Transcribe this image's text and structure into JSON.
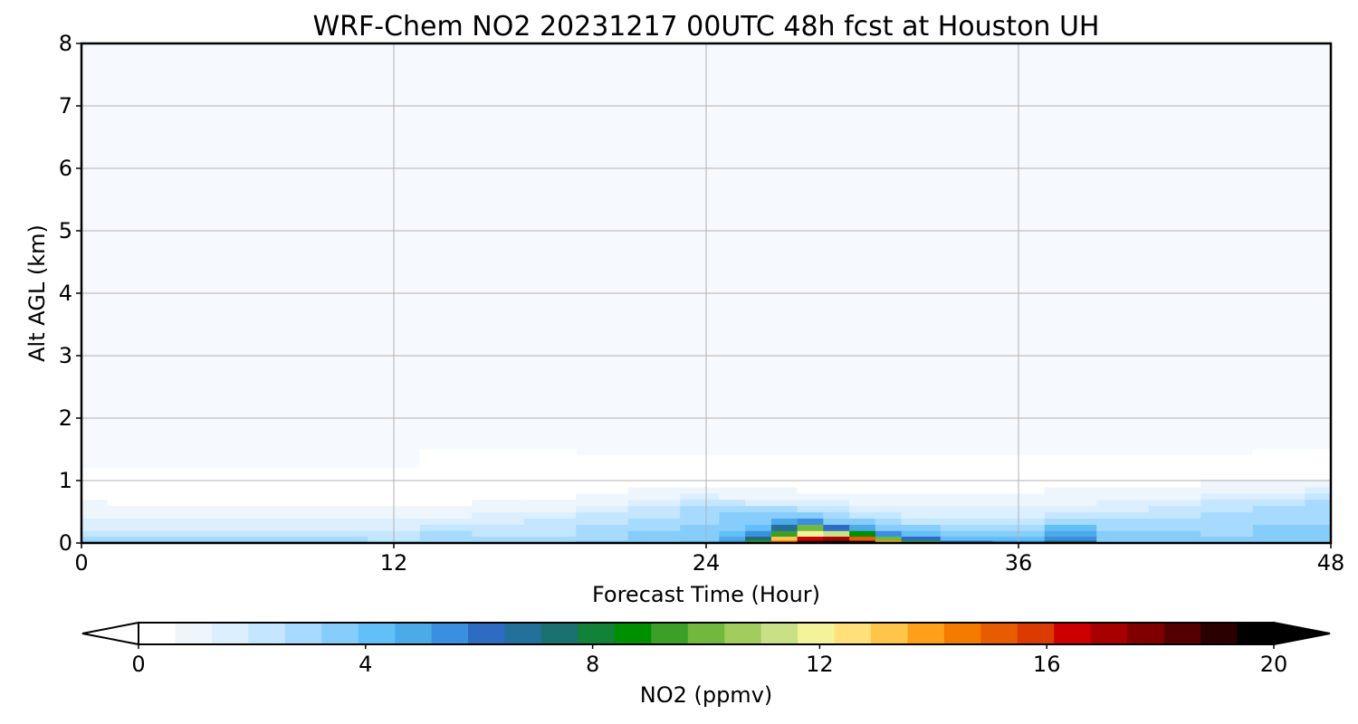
{
  "chart_data": {
    "type": "heatmap",
    "title": "WRF-Chem NO2  20231217 00UTC 48h fcst at Houston UH",
    "xlabel": "Forecast Time (Hour)",
    "ylabel": "Alt AGL (km)",
    "xlim": [
      0,
      48
    ],
    "ylim": [
      0,
      8
    ],
    "xticks": [
      0,
      12,
      24,
      36,
      48
    ],
    "yticks": [
      0,
      1,
      2,
      3,
      4,
      5,
      6,
      7,
      8
    ],
    "grid": true,
    "colorbar": {
      "label": "NO2  (ppmv)",
      "min": 0,
      "max": 20,
      "ticks": [
        0,
        4,
        8,
        12,
        16,
        20
      ],
      "extend": "both",
      "colors": [
        "#ffffff",
        "#eef6fc",
        "#dcefff",
        "#c4e6ff",
        "#a6dbff",
        "#86cdfb",
        "#62bff8",
        "#4caae8",
        "#3a8fe0",
        "#2e6bc2",
        "#23709a",
        "#1b7070",
        "#118238",
        "#008f00",
        "#3b9f28",
        "#73b83e",
        "#a2cc5e",
        "#c9e186",
        "#f3f39a",
        "#ffe07a",
        "#ffc44a",
        "#ff9f1a",
        "#f47a00",
        "#e85c00",
        "#db3a00",
        "#cc0000",
        "#a60000",
        "#800000",
        "#550000",
        "#2a0000",
        "#000000"
      ]
    },
    "x": [
      0,
      2,
      4,
      6,
      8,
      10,
      12,
      14,
      16,
      18,
      20,
      22,
      24,
      25,
      26,
      27,
      28,
      29,
      30,
      31,
      32,
      34,
      36,
      38,
      40,
      42,
      44,
      46,
      48
    ],
    "y": [
      0.02,
      0.07,
      0.15,
      0.25,
      0.35,
      0.45,
      0.55,
      0.65,
      0.75,
      0.85,
      0.95,
      1.1,
      1.3,
      1.5
    ],
    "z": [
      [
        3.0,
        3.5,
        3.5,
        3.5,
        3.5,
        3.0,
        2.5,
        2.8,
        2.5,
        2.5,
        3.0,
        3.5,
        4.0,
        5.0,
        9.0,
        15.0,
        19.0,
        20.0,
        19.0,
        14.0,
        9.0,
        6.0,
        5.0,
        7.5,
        3.5,
        3.0,
        3.0,
        3.0,
        3.0
      ],
      [
        2.5,
        2.8,
        2.8,
        2.8,
        2.8,
        2.5,
        2.2,
        2.6,
        2.4,
        2.4,
        2.8,
        3.2,
        3.5,
        4.5,
        7.5,
        13.0,
        16.5,
        17.0,
        15.0,
        10.0,
        6.0,
        4.0,
        4.0,
        5.5,
        3.2,
        3.0,
        3.0,
        3.0,
        3.0
      ],
      [
        2.0,
        2.0,
        2.1,
        2.1,
        2.0,
        1.9,
        1.8,
        2.4,
        2.2,
        2.3,
        2.6,
        3.0,
        3.2,
        4.0,
        5.5,
        9.5,
        12.0,
        11.0,
        8.5,
        5.5,
        4.0,
        3.0,
        3.3,
        4.5,
        3.0,
        3.0,
        2.9,
        3.0,
        3.0
      ],
      [
        1.5,
        1.5,
        1.5,
        1.5,
        1.5,
        1.4,
        1.4,
        2.0,
        1.9,
        2.1,
        2.4,
        2.8,
        3.0,
        3.5,
        4.0,
        6.5,
        10.0,
        6.0,
        4.5,
        3.5,
        3.0,
        2.5,
        2.6,
        3.8,
        2.8,
        2.8,
        2.8,
        3.0,
        3.0
      ],
      [
        1.2,
        1.1,
        1.0,
        1.0,
        1.0,
        1.0,
        1.0,
        1.4,
        1.5,
        1.7,
        2.1,
        2.6,
        2.8,
        3.3,
        3.6,
        4.5,
        5.0,
        3.5,
        3.0,
        2.7,
        2.3,
        2.0,
        2.0,
        2.8,
        2.5,
        2.5,
        2.7,
        2.9,
        2.9
      ],
      [
        0.8,
        0.7,
        0.6,
        0.6,
        0.6,
        0.6,
        0.6,
        0.9,
        1.0,
        1.3,
        1.7,
        2.3,
        2.8,
        3.0,
        3.0,
        3.3,
        3.2,
        2.6,
        2.2,
        1.9,
        1.6,
        1.5,
        1.5,
        2.0,
        2.0,
        2.2,
        2.5,
        2.8,
        2.8
      ],
      [
        0.5,
        0.4,
        0.35,
        0.35,
        0.35,
        0.35,
        0.35,
        0.5,
        0.6,
        0.9,
        1.3,
        1.8,
        2.5,
        2.6,
        2.5,
        2.4,
        2.2,
        1.8,
        1.5,
        1.3,
        1.1,
        1.0,
        1.0,
        1.4,
        1.5,
        1.8,
        2.2,
        2.6,
        2.7
      ],
      [
        0.35,
        0.25,
        0.2,
        0.2,
        0.2,
        0.2,
        0.2,
        0.3,
        0.35,
        0.5,
        0.8,
        1.2,
        1.8,
        1.8,
        1.6,
        1.5,
        1.3,
        1.1,
        0.9,
        0.8,
        0.7,
        0.7,
        0.7,
        0.9,
        1.0,
        1.3,
        1.8,
        2.2,
        2.4
      ],
      [
        0.2,
        0.15,
        0.12,
        0.12,
        0.12,
        0.12,
        0.12,
        0.15,
        0.2,
        0.3,
        0.5,
        0.7,
        1.0,
        0.9,
        0.8,
        0.7,
        0.6,
        0.5,
        0.45,
        0.4,
        0.4,
        0.4,
        0.45,
        0.6,
        0.6,
        0.8,
        1.2,
        1.6,
        1.8
      ],
      [
        0.1,
        0.1,
        0.08,
        0.08,
        0.08,
        0.08,
        0.08,
        0.1,
        0.12,
        0.15,
        0.25,
        0.35,
        0.5,
        0.45,
        0.4,
        0.35,
        0.3,
        0.28,
        0.26,
        0.25,
        0.25,
        0.25,
        0.3,
        0.4,
        0.35,
        0.5,
        0.7,
        0.9,
        1.0
      ],
      [
        0.05,
        0.05,
        0.05,
        0.05,
        0.05,
        0.05,
        0.05,
        0.08,
        0.08,
        0.1,
        0.12,
        0.18,
        0.25,
        0.22,
        0.2,
        0.2,
        0.2,
        0.2,
        0.2,
        0.2,
        0.2,
        0.2,
        0.22,
        0.3,
        0.22,
        0.25,
        0.35,
        0.45,
        0.5
      ],
      [
        0.02,
        0.02,
        0.02,
        0.02,
        0.02,
        0.02,
        0.02,
        0.05,
        0.05,
        0.05,
        0.05,
        0.06,
        0.08,
        0.08,
        0.08,
        0.08,
        0.08,
        0.08,
        0.08,
        0.08,
        0.08,
        0.08,
        0.1,
        0.12,
        0.1,
        0.1,
        0.12,
        0.2,
        0.25
      ],
      [
        0.01,
        0.01,
        0.01,
        0.01,
        0.01,
        0.01,
        0.01,
        0.05,
        0.08,
        0.05,
        0.02,
        0.02,
        0.02,
        0.02,
        0.02,
        0.02,
        0.02,
        0.02,
        0.02,
        0.02,
        0.02,
        0.02,
        0.02,
        0.03,
        0.02,
        0.02,
        0.03,
        0.05,
        0.08
      ],
      [
        0.01,
        0.01,
        0.01,
        0.01,
        0.01,
        0.01,
        0.01,
        0.03,
        0.03,
        0.02,
        0.01,
        0.01,
        0.01,
        0.01,
        0.01,
        0.01,
        0.01,
        0.01,
        0.01,
        0.01,
        0.01,
        0.01,
        0.01,
        0.01,
        0.01,
        0.01,
        0.01,
        0.02,
        0.03
      ]
    ],
    "background_value_color": "#f6fafe"
  }
}
